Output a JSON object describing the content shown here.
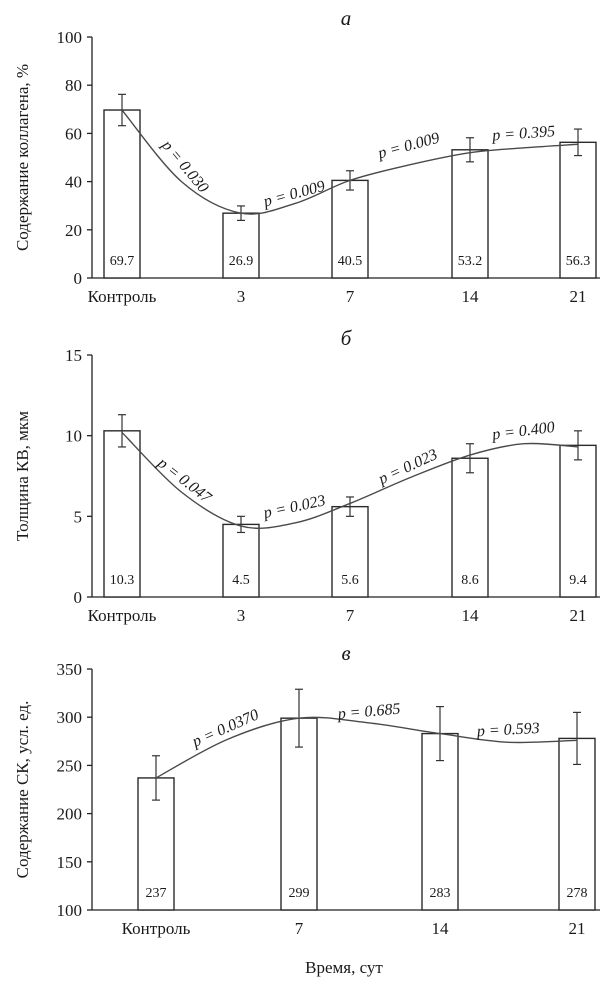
{
  "figure": {
    "xlabel": "Время, сут"
  },
  "chart_data": [
    {
      "type": "bar",
      "panel_letter": "а",
      "ylabel": "Содержание коллагена, %",
      "categories": [
        "Контроль",
        "3",
        "7",
        "14",
        "21"
      ],
      "values": [
        69.7,
        26.9,
        40.5,
        53.2,
        56.3
      ],
      "value_labels": [
        "69.7",
        "26.9",
        "40.5",
        "53.2",
        "56.3"
      ],
      "errors": [
        6.5,
        3.0,
        4.0,
        5.0,
        5.5
      ],
      "ylim": [
        0,
        100
      ],
      "yticks": [
        0,
        20,
        40,
        60,
        80,
        100
      ],
      "trend": [
        {
          "x": 0,
          "y": 69.7
        },
        {
          "x": 0.5,
          "y": 40
        },
        {
          "x": 1,
          "y": 26.9
        },
        {
          "x": 1.5,
          "y": 31
        },
        {
          "x": 2,
          "y": 40.5
        },
        {
          "x": 2.5,
          "y": 47
        },
        {
          "x": 3,
          "y": 52
        },
        {
          "x": 3.5,
          "y": 54
        },
        {
          "x": 4,
          "y": 55.5
        }
      ],
      "pvalues": [
        {
          "text": "p = 0.030",
          "x": 0.5,
          "y": 45,
          "angle": 50
        },
        {
          "text": "p = 0.009",
          "x": 1.5,
          "y": 33,
          "angle": -15
        },
        {
          "text": "p = 0.009",
          "x": 2.5,
          "y": 53,
          "angle": -15
        },
        {
          "text": "p = 0.395",
          "x": 3.5,
          "y": 58,
          "angle": -4
        }
      ]
    },
    {
      "type": "bar",
      "panel_letter": "б",
      "ylabel": "Толщина КВ, мкм",
      "categories": [
        "Контроль",
        "3",
        "7",
        "14",
        "21"
      ],
      "values": [
        10.3,
        4.5,
        5.6,
        8.6,
        9.4
      ],
      "value_labels": [
        "10.3",
        "4.5",
        "5.6",
        "8.6",
        "9.4"
      ],
      "errors": [
        1.0,
        0.5,
        0.6,
        0.9,
        0.9
      ],
      "ylim": [
        0,
        15
      ],
      "yticks": [
        0,
        5,
        10,
        15
      ],
      "trend": [
        {
          "x": 0,
          "y": 10.2
        },
        {
          "x": 0.5,
          "y": 6.5
        },
        {
          "x": 1,
          "y": 4.4
        },
        {
          "x": 1.5,
          "y": 4.6
        },
        {
          "x": 2,
          "y": 5.8
        },
        {
          "x": 2.5,
          "y": 7.4
        },
        {
          "x": 3,
          "y": 8.8
        },
        {
          "x": 3.5,
          "y": 9.5
        },
        {
          "x": 4,
          "y": 9.3
        }
      ],
      "pvalues": [
        {
          "text": "p = 0.047",
          "x": 0.5,
          "y": 7.0,
          "angle": 38
        },
        {
          "text": "p = 0.023",
          "x": 1.5,
          "y": 5.3,
          "angle": -12
        },
        {
          "text": "p = 0.023",
          "x": 2.5,
          "y": 7.8,
          "angle": -25
        },
        {
          "text": "p = 0.400",
          "x": 3.5,
          "y": 10.0,
          "angle": -7
        }
      ]
    },
    {
      "type": "bar",
      "panel_letter": "в",
      "ylabel": "Содержание СК, усл. ед.",
      "categories": [
        "Контроль",
        "7",
        "14",
        "21"
      ],
      "values": [
        237,
        299,
        283,
        278
      ],
      "value_labels": [
        "237",
        "299",
        "283",
        "278"
      ],
      "errors": [
        23,
        30,
        28,
        27
      ],
      "ylim": [
        100,
        350
      ],
      "yticks": [
        100,
        150,
        200,
        250,
        300,
        350
      ],
      "trend": [
        {
          "x": 0,
          "y": 237
        },
        {
          "x": 0.5,
          "y": 277
        },
        {
          "x": 1,
          "y": 299
        },
        {
          "x": 1.5,
          "y": 294
        },
        {
          "x": 2,
          "y": 283
        },
        {
          "x": 2.5,
          "y": 274
        },
        {
          "x": 3,
          "y": 276
        }
      ],
      "pvalues": [
        {
          "text": "p = 0.0370",
          "x": 0.5,
          "y": 284,
          "angle": -24
        },
        {
          "text": "p = 0.685",
          "x": 1.5,
          "y": 301,
          "angle": -5
        },
        {
          "text": "p = 0.593",
          "x": 2.5,
          "y": 282,
          "angle": -3
        }
      ]
    }
  ]
}
